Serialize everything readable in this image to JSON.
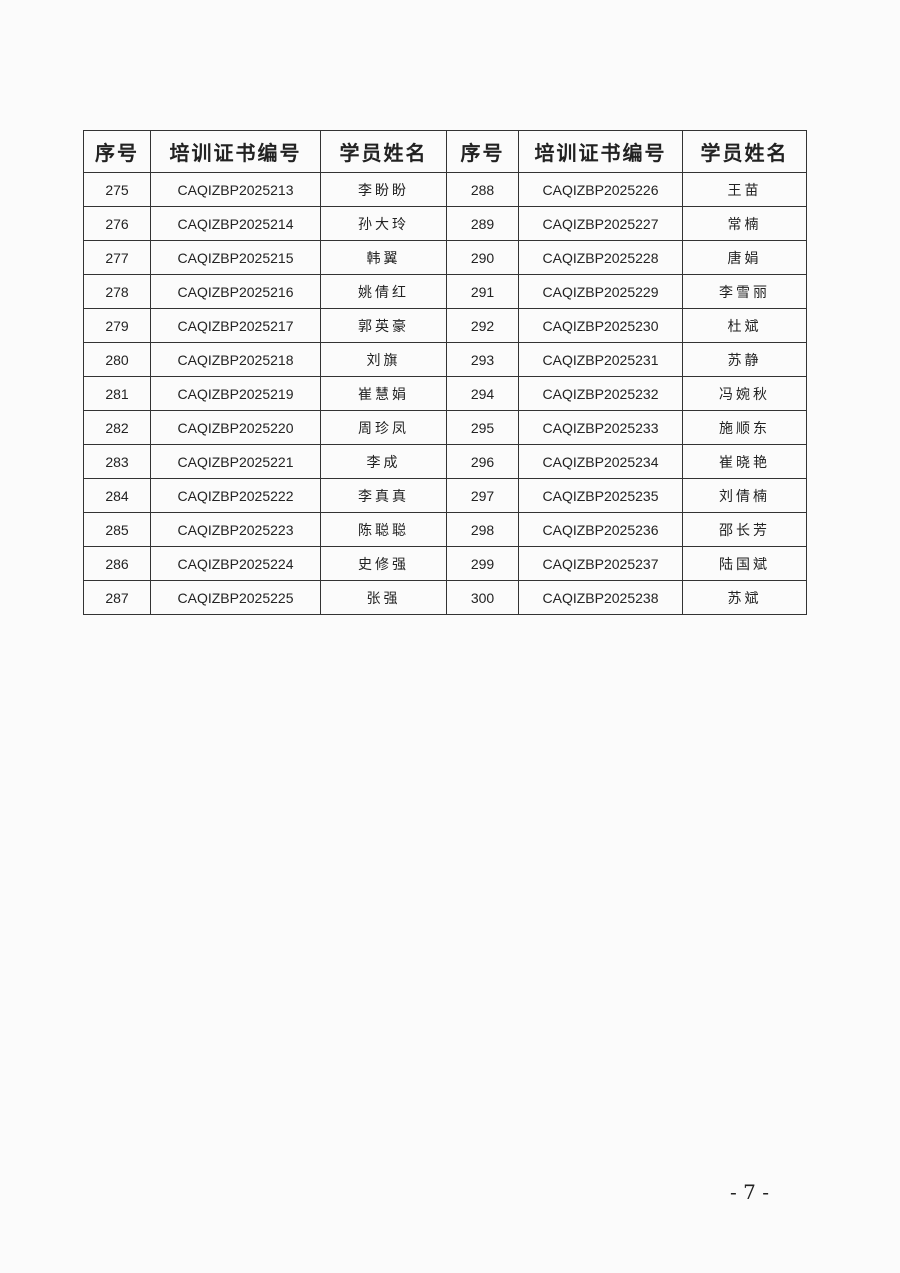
{
  "table": {
    "headers": [
      "序号",
      "培训证书编号",
      "学员姓名",
      "序号",
      "培训证书编号",
      "学员姓名"
    ],
    "rows": [
      [
        "275",
        "CAQIZBP2025213",
        "李盼盼",
        "288",
        "CAQIZBP2025226",
        "王苗"
      ],
      [
        "276",
        "CAQIZBP2025214",
        "孙大玲",
        "289",
        "CAQIZBP2025227",
        "常楠"
      ],
      [
        "277",
        "CAQIZBP2025215",
        "韩翼",
        "290",
        "CAQIZBP2025228",
        "唐娟"
      ],
      [
        "278",
        "CAQIZBP2025216",
        "姚倩红",
        "291",
        "CAQIZBP2025229",
        "李雪丽"
      ],
      [
        "279",
        "CAQIZBP2025217",
        "郭英豪",
        "292",
        "CAQIZBP2025230",
        "杜斌"
      ],
      [
        "280",
        "CAQIZBP2025218",
        "刘旗",
        "293",
        "CAQIZBP2025231",
        "苏静"
      ],
      [
        "281",
        "CAQIZBP2025219",
        "崔慧娟",
        "294",
        "CAQIZBP2025232",
        "冯婉秋"
      ],
      [
        "282",
        "CAQIZBP2025220",
        "周珍凤",
        "295",
        "CAQIZBP2025233",
        "施顺东"
      ],
      [
        "283",
        "CAQIZBP2025221",
        "李成",
        "296",
        "CAQIZBP2025234",
        "崔晓艳"
      ],
      [
        "284",
        "CAQIZBP2025222",
        "李真真",
        "297",
        "CAQIZBP2025235",
        "刘倩楠"
      ],
      [
        "285",
        "CAQIZBP2025223",
        "陈聪聪",
        "298",
        "CAQIZBP2025236",
        "邵长芳"
      ],
      [
        "286",
        "CAQIZBP2025224",
        "史修强",
        "299",
        "CAQIZBP2025237",
        "陆国斌"
      ],
      [
        "287",
        "CAQIZBP2025225",
        "张强",
        "300",
        "CAQIZBP2025238",
        "苏斌"
      ]
    ]
  },
  "page_number": "- 7 -"
}
